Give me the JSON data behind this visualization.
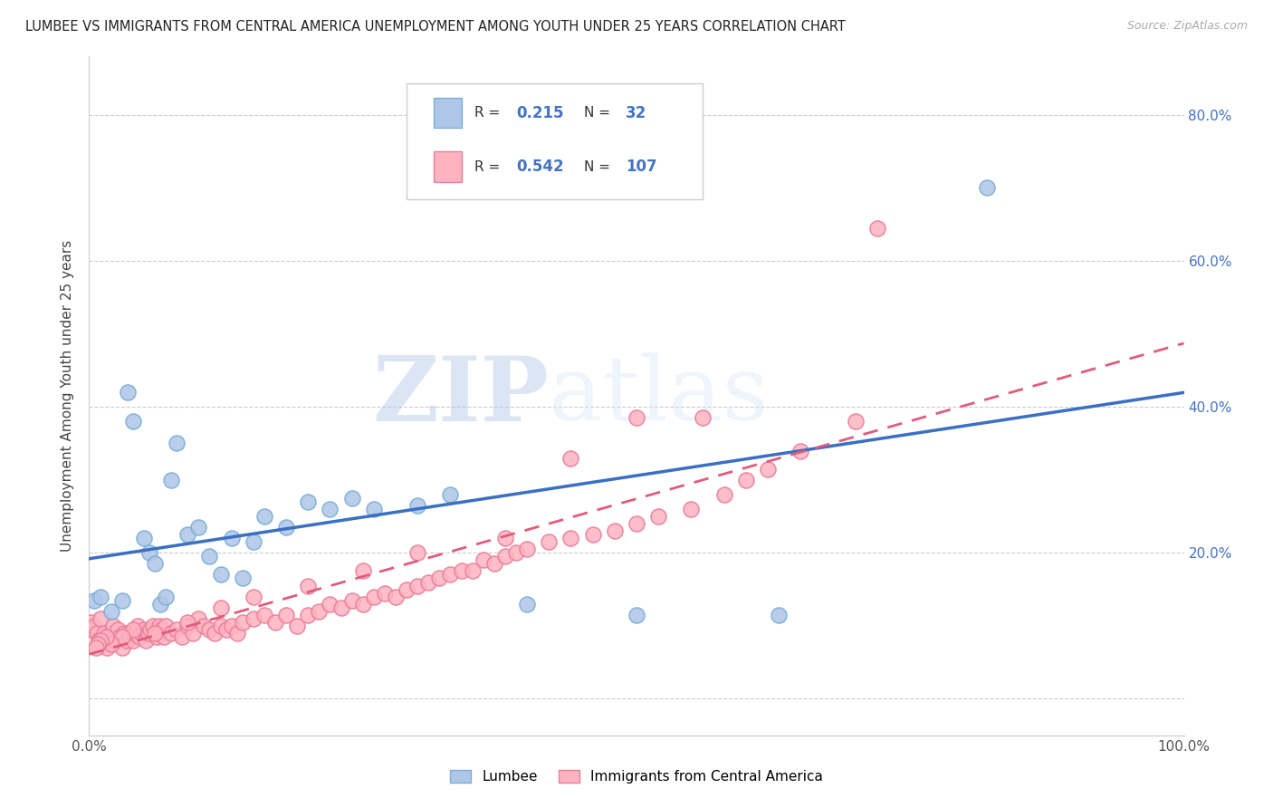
{
  "title": "LUMBEE VS IMMIGRANTS FROM CENTRAL AMERICA UNEMPLOYMENT AMONG YOUTH UNDER 25 YEARS CORRELATION CHART",
  "source": "Source: ZipAtlas.com",
  "ylabel": "Unemployment Among Youth under 25 years",
  "xlim": [
    0.0,
    1.0
  ],
  "ylim": [
    -0.05,
    0.88
  ],
  "yticks": [
    0.0,
    0.2,
    0.4,
    0.6,
    0.8
  ],
  "left_ytick_labels": [
    "",
    "",
    "",
    "",
    ""
  ],
  "right_ytick_labels": [
    "",
    "20.0%",
    "40.0%",
    "60.0%",
    "80.0%"
  ],
  "xtick_vals": [
    0.0,
    0.2,
    0.4,
    0.6,
    0.8,
    1.0
  ],
  "xtick_labels": [
    "0.0%",
    "",
    "",
    "",
    "",
    "100.0%"
  ],
  "lumbee_color": "#aec6e8",
  "lumbee_edge_color": "#7bafd4",
  "immigrants_color": "#ffb3c1",
  "immigrants_edge_color": "#e87f99",
  "lumbee_line_color": "#3a6fc4",
  "immigrants_line_color": "#e05c7a",
  "R_lumbee": 0.215,
  "N_lumbee": 32,
  "R_immigrants": 0.542,
  "N_immigrants": 107,
  "watermark_zip": "ZIP",
  "watermark_atlas": "atlas",
  "legend_label_lumbee": "Lumbee",
  "legend_label_immigrants": "Immigrants from Central America",
  "lumbee_scatter_x": [
    0.005,
    0.01,
    0.02,
    0.03,
    0.035,
    0.04,
    0.05,
    0.055,
    0.06,
    0.065,
    0.07,
    0.075,
    0.08,
    0.09,
    0.1,
    0.11,
    0.12,
    0.13,
    0.14,
    0.15,
    0.16,
    0.18,
    0.2,
    0.22,
    0.24,
    0.26,
    0.3,
    0.33,
    0.4,
    0.5,
    0.63,
    0.82
  ],
  "lumbee_scatter_y": [
    0.135,
    0.14,
    0.12,
    0.135,
    0.42,
    0.38,
    0.22,
    0.2,
    0.185,
    0.13,
    0.14,
    0.3,
    0.35,
    0.225,
    0.235,
    0.195,
    0.17,
    0.22,
    0.165,
    0.215,
    0.25,
    0.235,
    0.27,
    0.26,
    0.275,
    0.26,
    0.265,
    0.28,
    0.13,
    0.115,
    0.115,
    0.7
  ],
  "imm_scatter_x": [
    0.001,
    0.003,
    0.005,
    0.007,
    0.009,
    0.01,
    0.012,
    0.014,
    0.016,
    0.018,
    0.02,
    0.022,
    0.024,
    0.026,
    0.028,
    0.03,
    0.032,
    0.034,
    0.036,
    0.038,
    0.04,
    0.042,
    0.044,
    0.046,
    0.048,
    0.05,
    0.052,
    0.054,
    0.056,
    0.058,
    0.06,
    0.062,
    0.064,
    0.066,
    0.068,
    0.07,
    0.075,
    0.08,
    0.085,
    0.09,
    0.095,
    0.1,
    0.105,
    0.11,
    0.115,
    0.12,
    0.125,
    0.13,
    0.135,
    0.14,
    0.15,
    0.16,
    0.17,
    0.18,
    0.19,
    0.2,
    0.21,
    0.22,
    0.23,
    0.24,
    0.25,
    0.26,
    0.27,
    0.28,
    0.29,
    0.3,
    0.31,
    0.32,
    0.33,
    0.34,
    0.35,
    0.36,
    0.37,
    0.38,
    0.39,
    0.4,
    0.42,
    0.44,
    0.46,
    0.48,
    0.5,
    0.52,
    0.55,
    0.58,
    0.6,
    0.62,
    0.65,
    0.7,
    0.72,
    0.5,
    0.56,
    0.44,
    0.38,
    0.3,
    0.25,
    0.2,
    0.15,
    0.12,
    0.09,
    0.06,
    0.04,
    0.03,
    0.02,
    0.015,
    0.01,
    0.008,
    0.006
  ],
  "imm_scatter_y": [
    0.105,
    0.095,
    0.1,
    0.09,
    0.08,
    0.11,
    0.08,
    0.09,
    0.07,
    0.08,
    0.09,
    0.1,
    0.08,
    0.095,
    0.085,
    0.07,
    0.09,
    0.08,
    0.09,
    0.085,
    0.08,
    0.09,
    0.1,
    0.085,
    0.09,
    0.095,
    0.08,
    0.09,
    0.095,
    0.1,
    0.09,
    0.085,
    0.1,
    0.095,
    0.085,
    0.1,
    0.09,
    0.095,
    0.085,
    0.1,
    0.09,
    0.11,
    0.1,
    0.095,
    0.09,
    0.1,
    0.095,
    0.1,
    0.09,
    0.105,
    0.11,
    0.115,
    0.105,
    0.115,
    0.1,
    0.115,
    0.12,
    0.13,
    0.125,
    0.135,
    0.13,
    0.14,
    0.145,
    0.14,
    0.15,
    0.155,
    0.16,
    0.165,
    0.17,
    0.175,
    0.175,
    0.19,
    0.185,
    0.195,
    0.2,
    0.205,
    0.215,
    0.22,
    0.225,
    0.23,
    0.24,
    0.25,
    0.26,
    0.28,
    0.3,
    0.315,
    0.34,
    0.38,
    0.645,
    0.385,
    0.385,
    0.33,
    0.22,
    0.2,
    0.175,
    0.155,
    0.14,
    0.125,
    0.105,
    0.09,
    0.095,
    0.085,
    0.075,
    0.085,
    0.08,
    0.075,
    0.07
  ]
}
